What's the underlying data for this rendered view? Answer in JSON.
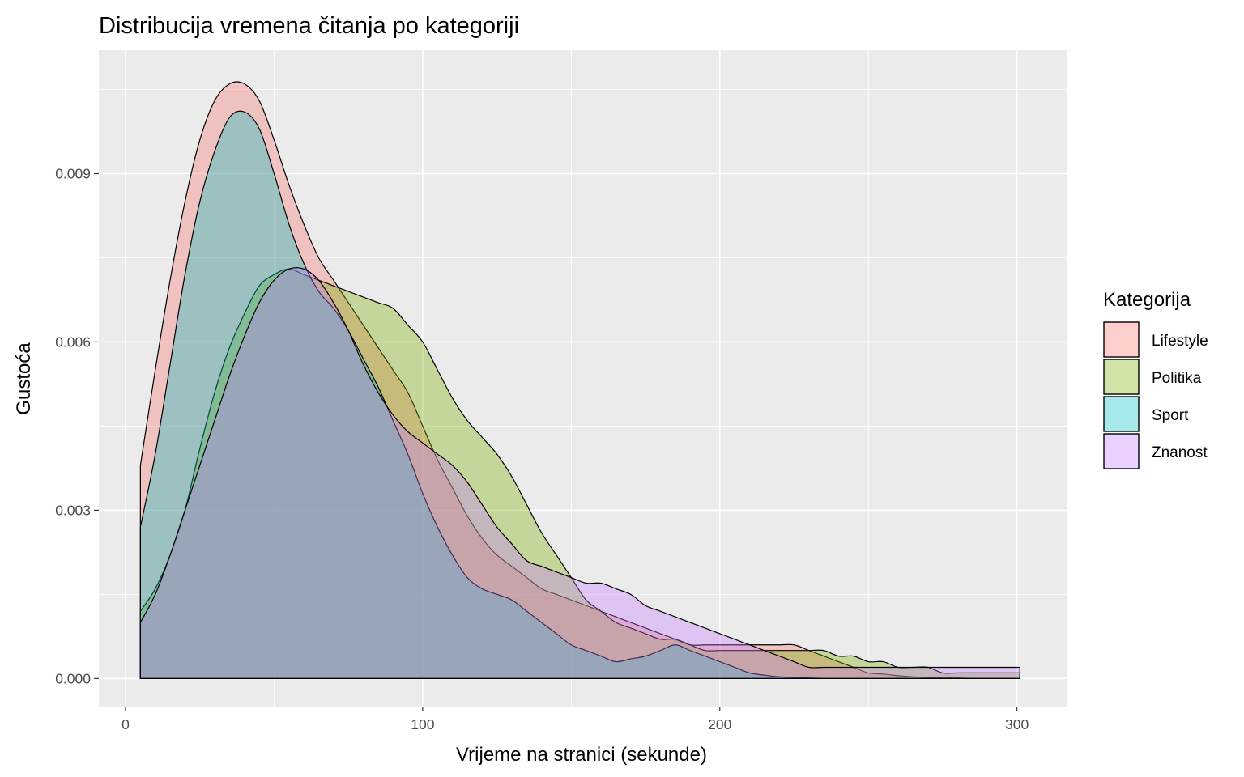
{
  "chart_data": {
    "type": "area",
    "title": "Distribucija vremena čitanja po kategoriji",
    "xlabel": "Vrijeme na stranici (sekunde)",
    "ylabel": "Gustoća",
    "xlim": [
      -9,
      317
    ],
    "ylim": [
      -0.0005,
      0.0112
    ],
    "x_ticks": [
      0,
      100,
      200,
      300
    ],
    "x_tick_labels": [
      "0",
      "100",
      "200",
      "300"
    ],
    "y_ticks": [
      0.0,
      0.003,
      0.006,
      0.009
    ],
    "y_tick_labels": [
      "0.000",
      "0.003",
      "0.006",
      "0.009"
    ],
    "grid": true,
    "legend_title": "Kategorija",
    "legend_position": "right",
    "series": [
      {
        "name": "Lifestyle",
        "color": "#F8766D",
        "x": [
          5,
          10,
          15,
          20,
          25,
          30,
          35,
          40,
          45,
          50,
          55,
          60,
          65,
          70,
          75,
          80,
          85,
          90,
          95,
          100,
          105,
          110,
          115,
          120,
          125,
          130,
          135,
          140,
          145,
          150,
          155,
          160,
          165,
          170,
          175,
          180,
          185,
          190,
          195,
          200,
          205,
          210,
          215,
          220,
          225,
          230,
          235,
          240,
          245,
          250,
          255,
          260,
          265,
          270,
          275,
          280,
          285,
          290,
          295,
          301
        ],
        "values": [
          0.0038,
          0.0055,
          0.0071,
          0.0085,
          0.0096,
          0.0103,
          0.0106,
          0.0106,
          0.0103,
          0.0096,
          0.0088,
          0.0081,
          0.0075,
          0.0071,
          0.0067,
          0.0063,
          0.0059,
          0.0055,
          0.0051,
          0.0045,
          0.0039,
          0.0034,
          0.0029,
          0.0025,
          0.0022,
          0.002,
          0.0018,
          0.0016,
          0.0015,
          0.0014,
          0.0013,
          0.0012,
          0.0011,
          0.001,
          0.0009,
          0.0008,
          0.0007,
          0.0006,
          0.0006,
          0.0006,
          0.0006,
          0.0006,
          0.0006,
          0.0006,
          0.0006,
          0.0005,
          0.0004,
          0.0003,
          0.0002,
          0.0001,
          8e-05,
          5e-05,
          3e-05,
          2e-05,
          1e-05,
          1e-05,
          0.0,
          0.0,
          0.0,
          0.0
        ]
      },
      {
        "name": "Politika",
        "color": "#7CAE00",
        "x": [
          5,
          10,
          15,
          20,
          25,
          30,
          35,
          40,
          45,
          50,
          55,
          60,
          65,
          70,
          75,
          80,
          85,
          90,
          95,
          100,
          105,
          110,
          115,
          120,
          125,
          130,
          135,
          140,
          145,
          150,
          155,
          160,
          165,
          170,
          175,
          180,
          185,
          190,
          195,
          200,
          205,
          210,
          215,
          220,
          225,
          230,
          235,
          240,
          245,
          250,
          255,
          260,
          265,
          270,
          275,
          280,
          285,
          290,
          295,
          301
        ],
        "values": [
          0.0012,
          0.0016,
          0.0022,
          0.003,
          0.0041,
          0.0051,
          0.0059,
          0.0065,
          0.007,
          0.0072,
          0.0073,
          0.0072,
          0.0071,
          0.007,
          0.0069,
          0.0068,
          0.0067,
          0.0066,
          0.0063,
          0.006,
          0.0055,
          0.005,
          0.0046,
          0.0043,
          0.004,
          0.0036,
          0.0031,
          0.0026,
          0.0022,
          0.0018,
          0.0014,
          0.0012,
          0.001,
          0.0009,
          0.0008,
          0.0007,
          0.0007,
          0.0006,
          0.0005,
          0.0005,
          0.0005,
          0.0005,
          0.0005,
          0.0005,
          0.0005,
          0.0005,
          0.0005,
          0.0004,
          0.0004,
          0.0003,
          0.0003,
          0.0002,
          0.0002,
          0.0002,
          0.0001,
          0.0001,
          0.0001,
          0.0001,
          0.0001,
          0.0001
        ]
      },
      {
        "name": "Sport",
        "color": "#00BFC4",
        "x": [
          5,
          10,
          15,
          20,
          25,
          30,
          35,
          40,
          45,
          50,
          55,
          60,
          65,
          70,
          75,
          80,
          85,
          90,
          95,
          100,
          105,
          110,
          115,
          120,
          125,
          130,
          135,
          140,
          145,
          150,
          155,
          160,
          165,
          170,
          175,
          180,
          185,
          190,
          195,
          200,
          205,
          210,
          215,
          220,
          225,
          230,
          235,
          240,
          245,
          250,
          255,
          260,
          265,
          270,
          275,
          280,
          285,
          290,
          295,
          301
        ],
        "values": [
          0.0027,
          0.004,
          0.0056,
          0.0072,
          0.0085,
          0.0094,
          0.01,
          0.0101,
          0.0098,
          0.009,
          0.0081,
          0.0074,
          0.0069,
          0.0066,
          0.0062,
          0.0057,
          0.0052,
          0.0046,
          0.004,
          0.0033,
          0.0027,
          0.0022,
          0.0018,
          0.0016,
          0.0015,
          0.0014,
          0.0012,
          0.001,
          0.0008,
          0.0006,
          0.0005,
          0.0004,
          0.0003,
          0.00035,
          0.0004,
          0.0005,
          0.0006,
          0.0005,
          0.0004,
          0.0003,
          0.0002,
          0.0001,
          6e-05,
          3e-05,
          2e-05,
          1e-05,
          0.0,
          0.0,
          0.0,
          0.0,
          0.0,
          0.0,
          0.0,
          0.0,
          0.0,
          0.0,
          0.0,
          0.0,
          0.0,
          0.0
        ]
      },
      {
        "name": "Znanost",
        "color": "#C77CFF",
        "x": [
          5,
          10,
          15,
          20,
          25,
          30,
          35,
          40,
          45,
          50,
          55,
          60,
          65,
          70,
          75,
          80,
          85,
          90,
          95,
          100,
          105,
          110,
          115,
          120,
          125,
          130,
          135,
          140,
          145,
          150,
          155,
          160,
          165,
          170,
          175,
          180,
          185,
          190,
          195,
          200,
          205,
          210,
          215,
          220,
          225,
          230,
          235,
          240,
          245,
          250,
          255,
          260,
          265,
          270,
          275,
          280,
          285,
          290,
          295,
          301
        ],
        "values": [
          0.001,
          0.0015,
          0.0022,
          0.003,
          0.0038,
          0.0046,
          0.0054,
          0.0061,
          0.0067,
          0.0071,
          0.0073,
          0.0073,
          0.0071,
          0.0067,
          0.0062,
          0.0056,
          0.0051,
          0.0047,
          0.0044,
          0.0042,
          0.004,
          0.0038,
          0.0035,
          0.0031,
          0.0027,
          0.0024,
          0.0021,
          0.002,
          0.0019,
          0.0018,
          0.0017,
          0.0017,
          0.0016,
          0.0015,
          0.0013,
          0.0012,
          0.0011,
          0.001,
          0.0009,
          0.0008,
          0.0007,
          0.0006,
          0.0005,
          0.0004,
          0.0003,
          0.0002,
          0.0002,
          0.0002,
          0.0002,
          0.0002,
          0.0002,
          0.0002,
          0.0002,
          0.0002,
          0.0002,
          0.0002,
          0.0002,
          0.0002,
          0.0002,
          0.0002
        ]
      }
    ]
  }
}
